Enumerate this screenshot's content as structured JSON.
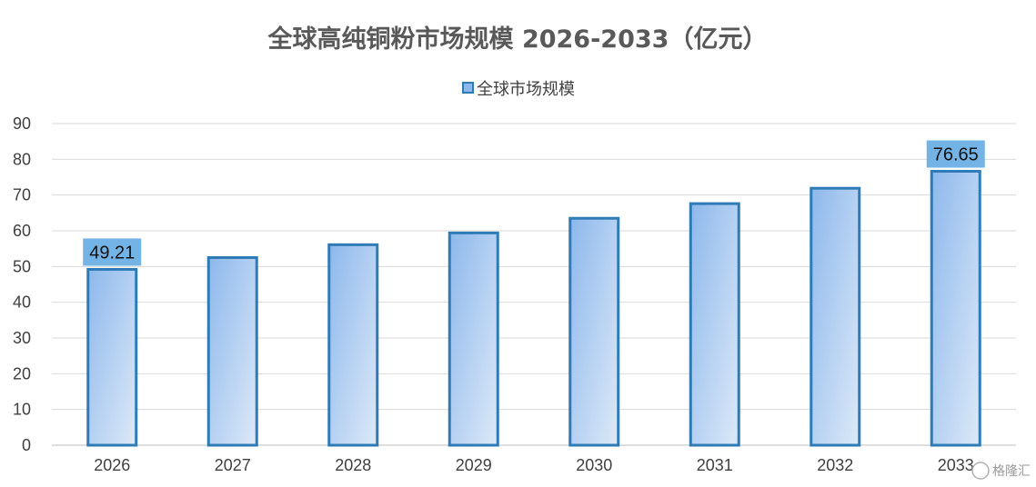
{
  "chart_data": {
    "type": "bar",
    "title": "全球高纯铜粉市场规模 2026-2033（亿元）",
    "categories": [
      "2026",
      "2027",
      "2028",
      "2029",
      "2030",
      "2031",
      "2032",
      "2033"
    ],
    "series": [
      {
        "name": "全球市场规模",
        "values": [
          49.21,
          52.5,
          56.1,
          59.4,
          63.5,
          67.6,
          71.9,
          76.65
        ],
        "data_labels": {
          "0": "49.21",
          "7": "76.65"
        }
      }
    ],
    "ylim": [
      0,
      90
    ],
    "yticks": [
      0,
      10,
      20,
      30,
      40,
      50,
      60,
      70,
      80,
      90
    ],
    "grid": true,
    "legend_position": "top-center",
    "colors": {
      "bar_edge": "#2e7bb6",
      "bar_fill_start": "#8db8ec",
      "bar_fill_end": "#dde9f8",
      "label_bg": "#74b3e6",
      "grid": "#d9d9d9",
      "axis": "#bfbfbf"
    }
  },
  "watermark": {
    "text": "格隆汇"
  }
}
